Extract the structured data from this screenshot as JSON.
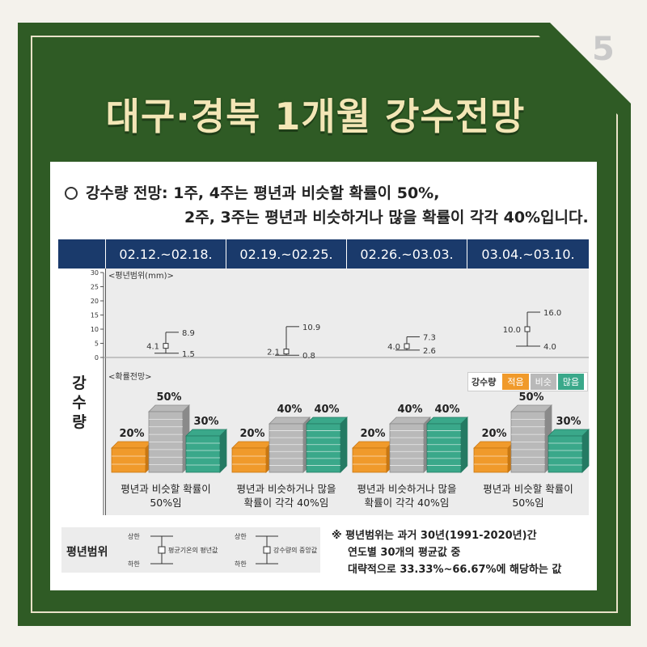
{
  "page_number": "5",
  "title": "대구·경북 1개월 강수전망",
  "summary": {
    "line1": "강수량 전망: 1주, 4주는 평년과 비슷할 확률이 50%,",
    "line2": "2주, 3주는 평년과 비슷하거나 많을 확률이 각각 40%입니다."
  },
  "side_label": [
    "강",
    "수",
    "량"
  ],
  "weeks": [
    "02.12.~02.18.",
    "02.19.~02.25.",
    "02.26.~03.03.",
    "03.04.~03.10."
  ],
  "range_chart_label": "<평년범위(mm)>",
  "prob_chart_label": "<확률전망>",
  "legend": {
    "label": "강수량",
    "items": [
      "적음",
      "비슷",
      "많음"
    ]
  },
  "colors": {
    "low": "#f09a2b",
    "normal": "#b9b9b9",
    "high": "#3aa88a",
    "header": "#1a3a6b",
    "frame": "#2f5b25"
  },
  "chart_data": [
    {
      "type": "range",
      "title": "<평년범위(mm)>",
      "ylim": [
        0,
        30
      ],
      "yticks": [
        0,
        5,
        10,
        15,
        20,
        25,
        30
      ],
      "categories": [
        "02.12.~02.18.",
        "02.19.~02.25.",
        "02.26.~03.03.",
        "03.04.~03.10."
      ],
      "series": [
        {
          "name": "상한",
          "values": [
            8.9,
            10.9,
            7.3,
            16.0
          ]
        },
        {
          "name": "평균",
          "values": [
            4.1,
            2.1,
            4.0,
            10.0
          ]
        },
        {
          "name": "하한",
          "values": [
            1.5,
            0.8,
            2.6,
            4.0
          ]
        }
      ],
      "value_labels": {
        "upper": [
          "8.9",
          "10.9",
          "7.3",
          "16.0"
        ],
        "mean": [
          "4.1",
          "2.1",
          "4.0",
          "10.0"
        ],
        "lower": [
          "1.5",
          "0.8",
          "2.6",
          "4.0"
        ]
      }
    },
    {
      "type": "bar",
      "title": "<확률전망>",
      "categories": [
        "02.12.~02.18.",
        "02.19.~02.25.",
        "02.26.~03.03.",
        "03.04.~03.10."
      ],
      "series": [
        {
          "name": "적음",
          "values": [
            20,
            20,
            20,
            20
          ]
        },
        {
          "name": "비슷",
          "values": [
            50,
            40,
            40,
            50
          ]
        },
        {
          "name": "많음",
          "values": [
            30,
            40,
            40,
            30
          ]
        }
      ],
      "captions": [
        [
          "평년과 비슷할 확률이",
          "50%임"
        ],
        [
          "평년과 비슷하거나 많을",
          "확률이 각각 40%임"
        ],
        [
          "평년과 비슷하거나 많을",
          "확률이 각각 40%임"
        ],
        [
          "평년과 비슷할 확률이",
          "50%임"
        ]
      ]
    }
  ],
  "range_legend": {
    "title": "평년범위",
    "upper": "상한",
    "lower": "하한",
    "mean_label": "평균기온의 평년값",
    "median_label": "강수량의 중앙값"
  },
  "note": {
    "line1": "※ 평년범위는 과거 30년(1991-2020년)간",
    "line2": "연도별 30개의 평균값 중",
    "line3": "대략적으로 33.33%~66.67%에 해당하는 값"
  }
}
